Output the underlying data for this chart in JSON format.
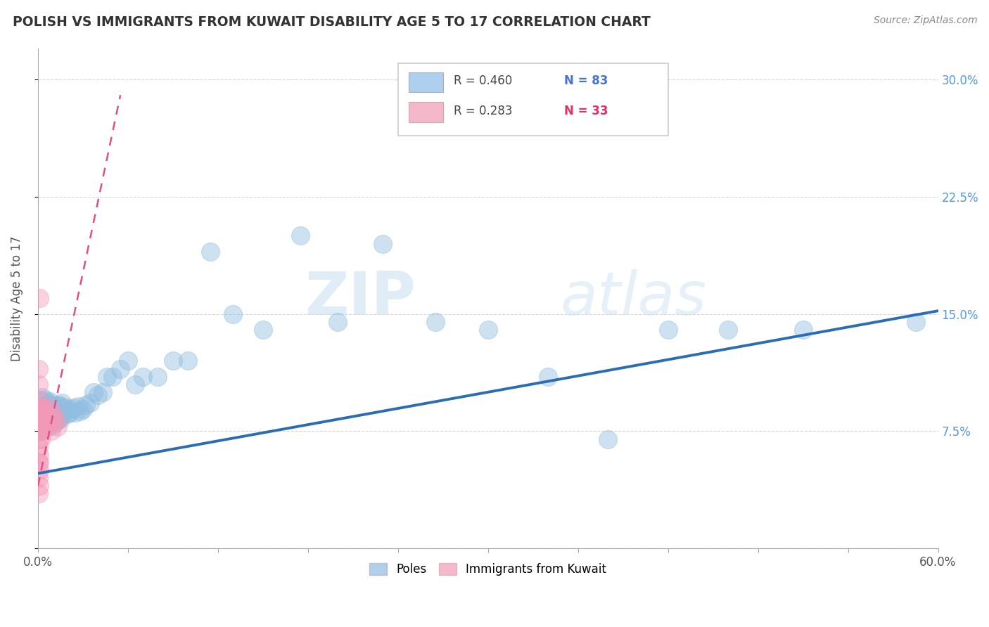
{
  "title": "POLISH VS IMMIGRANTS FROM KUWAIT DISABILITY AGE 5 TO 17 CORRELATION CHART",
  "source": "Source: ZipAtlas.com",
  "ylabel": "Disability Age 5 to 17",
  "xlim": [
    0.0,
    0.6
  ],
  "ylim": [
    0.0,
    0.32
  ],
  "legend_entries": [
    {
      "label_r": "R = 0.460",
      "label_n": "N = 83",
      "color": "#aecfee",
      "text_color": "#4477cc"
    },
    {
      "label_r": "R = 0.283",
      "label_n": "N = 33",
      "color": "#f5b8cb",
      "text_color": "#dd3366"
    }
  ],
  "bottom_legend": [
    "Poles",
    "Immigrants from Kuwait"
  ],
  "blue_color": "#90bde0",
  "pink_color": "#f599b8",
  "blue_line_color": "#2a6db5",
  "pink_line_color": "#e05080",
  "watermark_zip": "ZIP",
  "watermark_atlas": "atlas",
  "blue_scatter_x": [
    0.001,
    0.001,
    0.001,
    0.002,
    0.002,
    0.002,
    0.002,
    0.003,
    0.003,
    0.003,
    0.003,
    0.004,
    0.004,
    0.004,
    0.005,
    0.005,
    0.005,
    0.005,
    0.006,
    0.006,
    0.006,
    0.007,
    0.007,
    0.007,
    0.008,
    0.008,
    0.008,
    0.009,
    0.009,
    0.01,
    0.01,
    0.01,
    0.011,
    0.011,
    0.012,
    0.012,
    0.013,
    0.013,
    0.014,
    0.014,
    0.015,
    0.015,
    0.016,
    0.016,
    0.017,
    0.018,
    0.019,
    0.02,
    0.021,
    0.022,
    0.024,
    0.025,
    0.027,
    0.028,
    0.03,
    0.032,
    0.035,
    0.037,
    0.04,
    0.043,
    0.046,
    0.05,
    0.055,
    0.06,
    0.065,
    0.07,
    0.08,
    0.09,
    0.1,
    0.115,
    0.13,
    0.15,
    0.175,
    0.2,
    0.23,
    0.265,
    0.3,
    0.34,
    0.38,
    0.42,
    0.46,
    0.51,
    0.585
  ],
  "blue_scatter_y": [
    0.075,
    0.08,
    0.09,
    0.075,
    0.082,
    0.088,
    0.095,
    0.078,
    0.083,
    0.09,
    0.097,
    0.076,
    0.084,
    0.091,
    0.078,
    0.083,
    0.088,
    0.095,
    0.08,
    0.085,
    0.092,
    0.078,
    0.086,
    0.093,
    0.08,
    0.087,
    0.094,
    0.082,
    0.09,
    0.079,
    0.085,
    0.092,
    0.083,
    0.09,
    0.081,
    0.089,
    0.082,
    0.091,
    0.084,
    0.092,
    0.083,
    0.091,
    0.085,
    0.093,
    0.087,
    0.088,
    0.09,
    0.086,
    0.087,
    0.089,
    0.09,
    0.087,
    0.091,
    0.088,
    0.089,
    0.092,
    0.093,
    0.1,
    0.098,
    0.1,
    0.11,
    0.11,
    0.115,
    0.12,
    0.105,
    0.11,
    0.11,
    0.12,
    0.12,
    0.19,
    0.15,
    0.14,
    0.2,
    0.145,
    0.195,
    0.145,
    0.14,
    0.11,
    0.07,
    0.14,
    0.14,
    0.14,
    0.145
  ],
  "pink_scatter_x": [
    0.0005,
    0.0005,
    0.0005,
    0.0005,
    0.0005,
    0.0005,
    0.0005,
    0.0005,
    0.0005,
    0.0005,
    0.001,
    0.001,
    0.001,
    0.001,
    0.001,
    0.001,
    0.001,
    0.002,
    0.002,
    0.002,
    0.003,
    0.003,
    0.004,
    0.004,
    0.005,
    0.006,
    0.007,
    0.008,
    0.009,
    0.01,
    0.011,
    0.012,
    0.013
  ],
  "pink_scatter_y": [
    0.035,
    0.045,
    0.055,
    0.065,
    0.075,
    0.082,
    0.088,
    0.095,
    0.105,
    0.115,
    0.04,
    0.05,
    0.06,
    0.07,
    0.08,
    0.09,
    0.055,
    0.07,
    0.08,
    0.09,
    0.075,
    0.085,
    0.08,
    0.09,
    0.078,
    0.082,
    0.086,
    0.09,
    0.075,
    0.08,
    0.085,
    0.082,
    0.078
  ],
  "pink_outlier_x": [
    0.001
  ],
  "pink_outlier_y": [
    0.16
  ],
  "blue_line_x": [
    0.0,
    0.6
  ],
  "blue_line_y": [
    0.048,
    0.152
  ],
  "pink_line_x": [
    0.0,
    0.055
  ],
  "pink_line_y": [
    0.04,
    0.29
  ]
}
